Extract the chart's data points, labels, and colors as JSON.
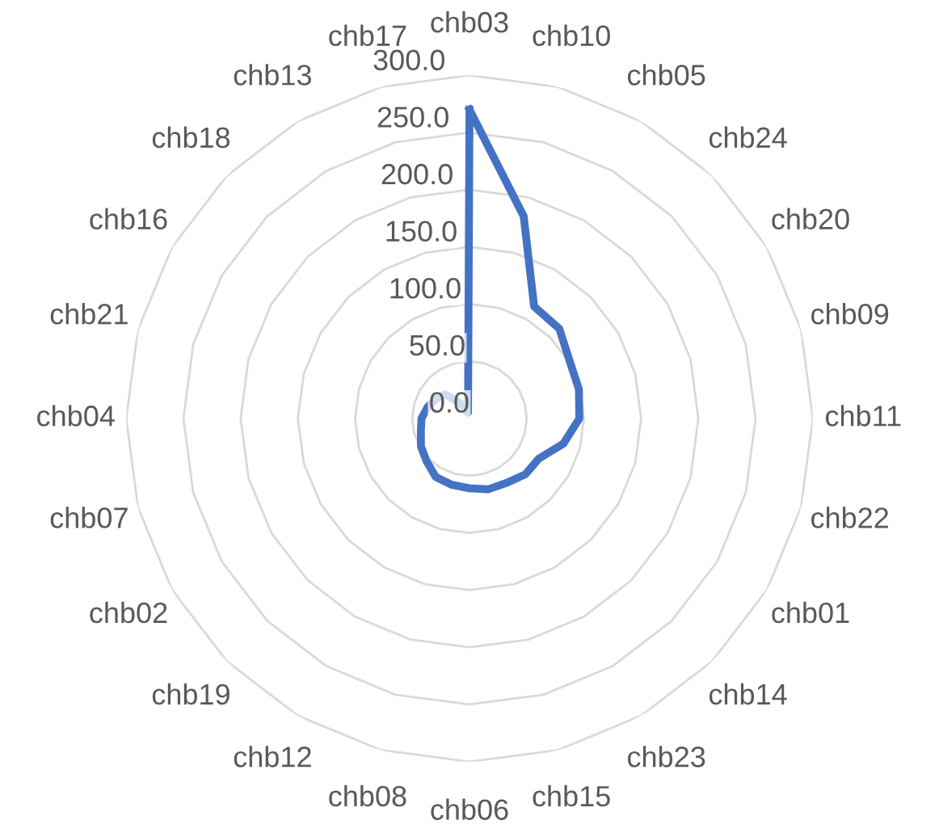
{
  "chart_data": {
    "type": "radar",
    "categories": [
      "chb03",
      "chb10",
      "chb05",
      "chb24",
      "chb20",
      "chb09",
      "chb11",
      "chb22",
      "chb01",
      "chb14",
      "chb23",
      "chb15",
      "chb06",
      "chb08",
      "chb12",
      "chb19",
      "chb02",
      "chb07",
      "chb04",
      "chb21",
      "chb16",
      "chb18",
      "chb13",
      "chb17"
    ],
    "series": [
      {
        "color": "#4472c4",
        "values": [
          270,
          183,
          113,
          111,
          101,
          99,
          96,
          85,
          70,
          69,
          65,
          64,
          61,
          60,
          59,
          53,
          49,
          44,
          42,
          38,
          34,
          30,
          15,
          5
        ]
      }
    ],
    "ylim": [
      0,
      300
    ],
    "yticks": [
      {
        "value": 0,
        "label": "0.0"
      },
      {
        "value": 50,
        "label": "50.0"
      },
      {
        "value": 100,
        "label": "100.0"
      },
      {
        "value": 150,
        "label": "150.0"
      },
      {
        "value": 200,
        "label": "200.0"
      },
      {
        "value": 250,
        "label": "250.0"
      },
      {
        "value": 300,
        "label": "300.0"
      }
    ],
    "grid": true,
    "marker": "none",
    "line_style": "solid",
    "legend": false
  }
}
